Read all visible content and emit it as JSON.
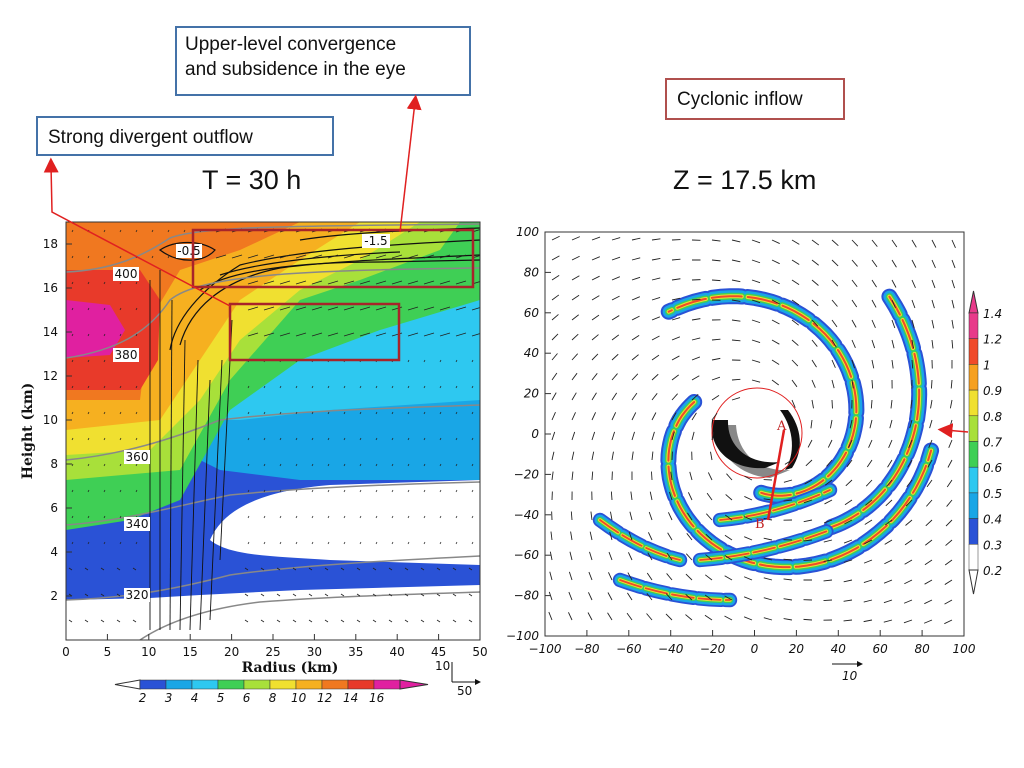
{
  "annotations": {
    "upper": {
      "line1": "Upper-level convergence",
      "line2": "and subsidence in the eye"
    },
    "outflow": "Strong divergent outflow",
    "cyclonic": "Cyclonic inflow"
  },
  "titles": {
    "left": "T = 30 h",
    "right": "Z = 17.5 km"
  },
  "left_panel": {
    "xlabel": "Radius (km)",
    "ylabel": "Height (km)",
    "x_ticks": [
      "0",
      "5",
      "10",
      "15",
      "20",
      "25",
      "30",
      "35",
      "40",
      "45",
      "50"
    ],
    "y_ticks": [
      "2",
      "4",
      "6",
      "8",
      "10",
      "12",
      "14",
      "16",
      "18"
    ],
    "theta_labels": [
      "400",
      "380",
      "360",
      "340",
      "320"
    ],
    "contour_labels": [
      "-0.5",
      "-1.5"
    ],
    "colorbar_ticks": [
      "2",
      "3",
      "4",
      "5",
      "6",
      "8",
      "10",
      "12",
      "14",
      "16"
    ],
    "colorbar_colors": [
      "#2a52d6",
      "#19a6e6",
      "#2ec8f0",
      "#3fcf55",
      "#a8e03a",
      "#f0e030",
      "#f6b020",
      "#f07820",
      "#e83a2a",
      "#e020a0"
    ],
    "vector_ref": {
      "vertical": "10",
      "horizontal": "50"
    }
  },
  "right_panel": {
    "x_ticks": [
      "−100",
      "−80",
      "−60",
      "−40",
      "−20",
      "0",
      "20",
      "40",
      "60",
      "80",
      "100"
    ],
    "y_ticks": [
      "100",
      "80",
      "60",
      "40",
      "20",
      "0",
      "−20",
      "−40",
      "−60",
      "−80",
      "−100"
    ],
    "point_labels": [
      "A",
      "B"
    ],
    "vector_ref": "10",
    "colorbar_ticks": [
      "1.4",
      "1.2",
      "1",
      "0.9",
      "0.8",
      "0.7",
      "0.6",
      "0.5",
      "0.4",
      "0.3",
      "0.2"
    ],
    "colorbar_colors": [
      "#e83a8a",
      "#f04a2a",
      "#f6a020",
      "#f0e030",
      "#a8e03a",
      "#3fcf55",
      "#2ec8f0",
      "#19a6e6",
      "#2a52d6",
      "#ffffff"
    ]
  },
  "colors": {
    "blue_box": "#4472a8",
    "red_box": "#b0504e",
    "arrow": "#e02020"
  }
}
